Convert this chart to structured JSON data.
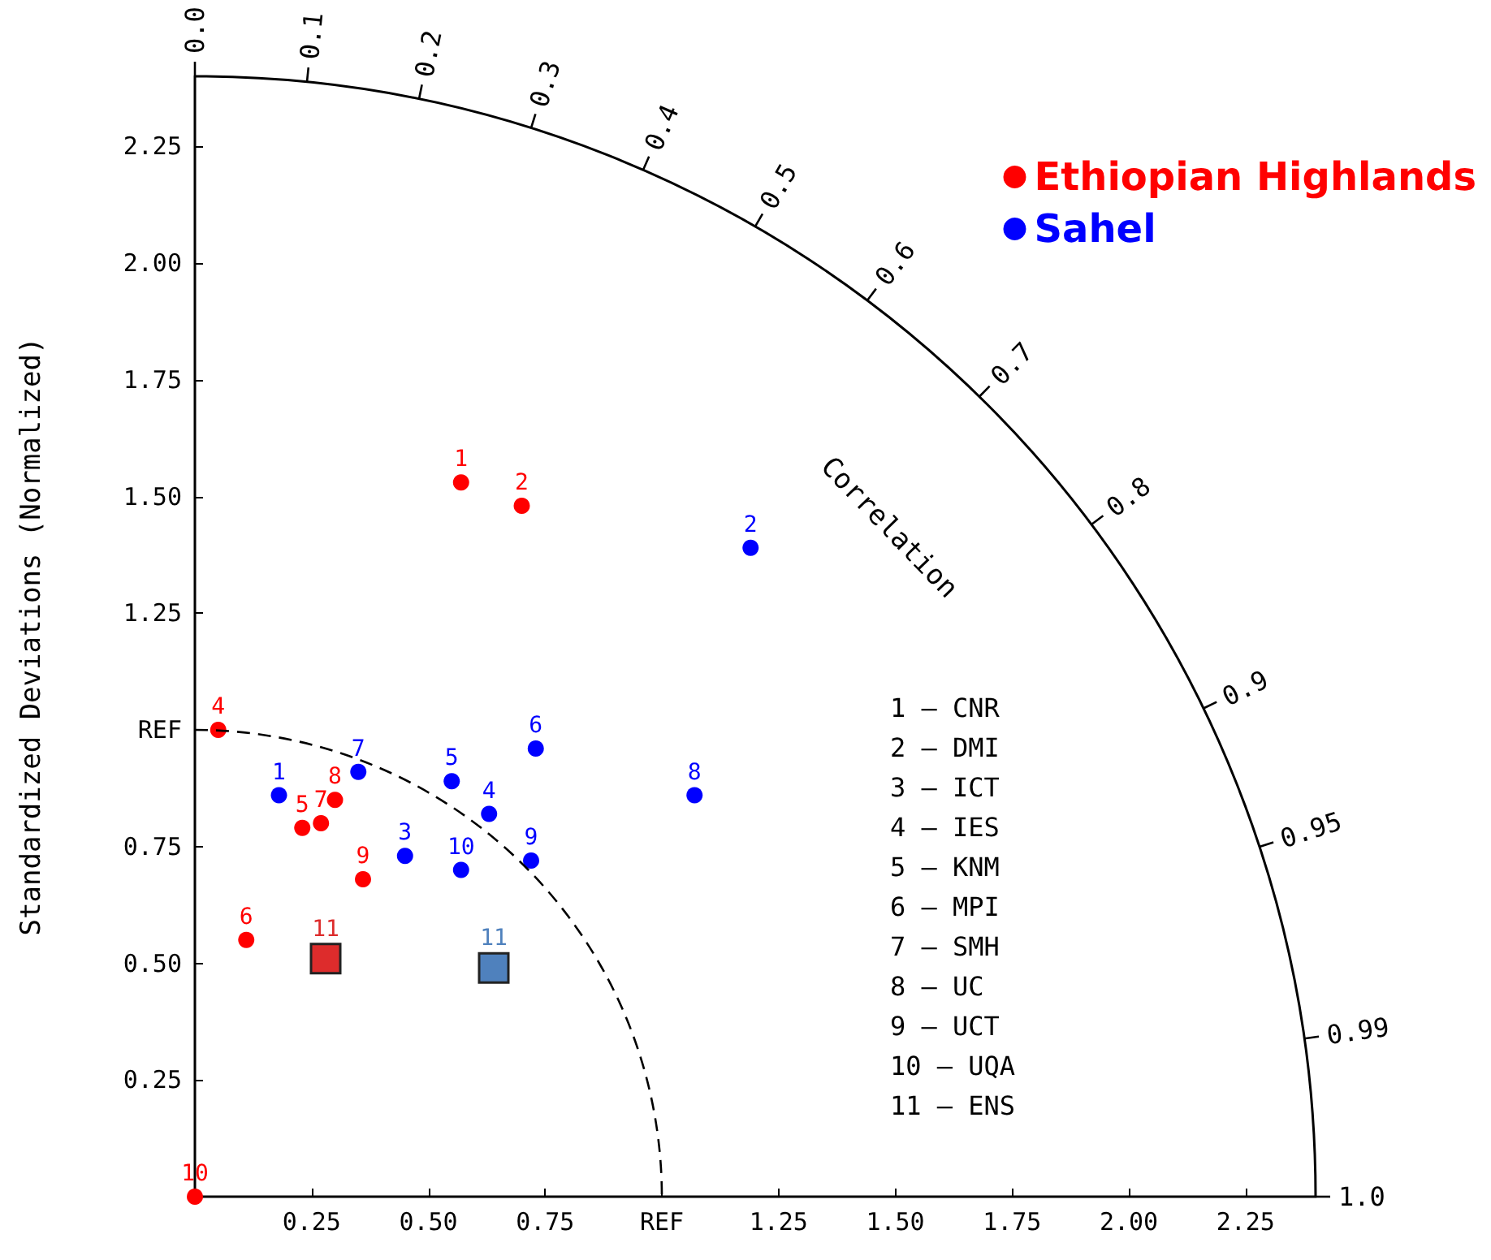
{
  "chart_data": {
    "type": "scatter",
    "ylabel": "Standardized Deviations (Normalized)",
    "xlim": [
      0,
      2.4
    ],
    "ylim": [
      0,
      2.4
    ],
    "xticks": [
      0.25,
      {
        "value": 0.5,
        "label": "0.50"
      },
      0.75,
      {
        "value": 1,
        "label": "REF"
      },
      1.25,
      {
        "value": 1.5,
        "label": "1.50"
      },
      1.75,
      {
        "value": 2,
        "label": "2.00"
      },
      2.25
    ],
    "yticks": [
      0.25,
      {
        "value": 0.5,
        "label": "0.50"
      },
      0.75,
      {
        "value": 1,
        "label": "REF"
      },
      1.25,
      {
        "value": 1.5,
        "label": "1.50"
      },
      1.75,
      {
        "value": 2,
        "label": "2.00"
      },
      2.25
    ],
    "legend": "top right",
    "marker": "circle",
    "grid": false,
    "series": [
      {
        "name": "Ethiopian Highlands",
        "color": "#ff0000",
        "x": [
          0.57,
          0.7,
          0.05,
          0.23,
          0.27,
          0.3,
          0.36,
          0.11,
          0
        ],
        "values": [
          1.53,
          1.48,
          1.0,
          0.79,
          0.8,
          0.85,
          0.68,
          0.55,
          0
        ]
      },
      {
        "name": "Sahel",
        "color": "#0000ff",
        "x": [
          0.18,
          0.35,
          0.45,
          0.55,
          0.63,
          0.73,
          0.57,
          0.72,
          1.07,
          1.19
        ],
        "values": [
          0.86,
          0.91,
          0.73,
          0.89,
          0.82,
          0.96,
          0.7,
          0.72,
          0.86,
          1.39
        ]
      },
      {
        "color": "#dd2c2c",
        "marker": "square",
        "x": [
          0.28
        ],
        "values": [
          0.51
        ]
      },
      {
        "color": "#4f81bd",
        "marker": "square",
        "x": [
          0.64
        ],
        "values": [
          0.49
        ]
      }
    ],
    "annotations": [
      "0.0",
      "0.1",
      "0.2",
      "0.3",
      "0.4",
      "0.5",
      "0.6",
      "0.7",
      "0.8",
      "0.9",
      "0.95",
      "0.99",
      "1.0",
      "Correlation",
      {
        "text": "1",
        "x": 0.57,
        "y": 1.53
      },
      {
        "text": "2",
        "x": 0.7,
        "y": 1.48
      },
      {
        "text": "4",
        "x": 0.05,
        "y": 1.0
      },
      {
        "text": "5",
        "x": 0.23,
        "y": 0.79
      },
      {
        "text": "7",
        "x": 0.27,
        "y": 0.8
      },
      {
        "text": "8",
        "x": 0.3,
        "y": 0.85
      },
      {
        "text": "9",
        "x": 0.36,
        "y": 0.68
      },
      {
        "text": "6",
        "x": 0.11,
        "y": 0.55
      },
      {
        "text": "10",
        "x": 0,
        "y": 0
      },
      {
        "text": "1",
        "x": 0.18,
        "y": 0.86
      },
      {
        "text": "7",
        "x": 0.35,
        "y": 0.91
      },
      {
        "text": "3",
        "x": 0.45,
        "y": 0.73
      },
      {
        "text": "5",
        "x": 0.55,
        "y": 0.89
      },
      {
        "text": "4",
        "x": 0.63,
        "y": 0.82
      },
      {
        "text": "6",
        "x": 0.73,
        "y": 0.96
      },
      {
        "text": "10",
        "x": 0.57,
        "y": 0.7
      },
      {
        "text": "9",
        "x": 0.72,
        "y": 0.72
      },
      {
        "text": "8",
        "x": 1.07,
        "y": 0.86
      },
      {
        "text": "2",
        "x": 1.19,
        "y": 1.39
      },
      {
        "text": "11",
        "x": 0.28,
        "y": 0.51
      },
      {
        "text": "11",
        "x": 0.64,
        "y": 0.49
      },
      "1 – CNR",
      "2 – DMI",
      "3 – ICT",
      "4 – IES",
      "5 – KNM",
      "6 – MPI",
      "7 – SMH",
      "8 – UC",
      "9 – UCT",
      "10 – UQA",
      "11 – ENS"
    ]
  }
}
